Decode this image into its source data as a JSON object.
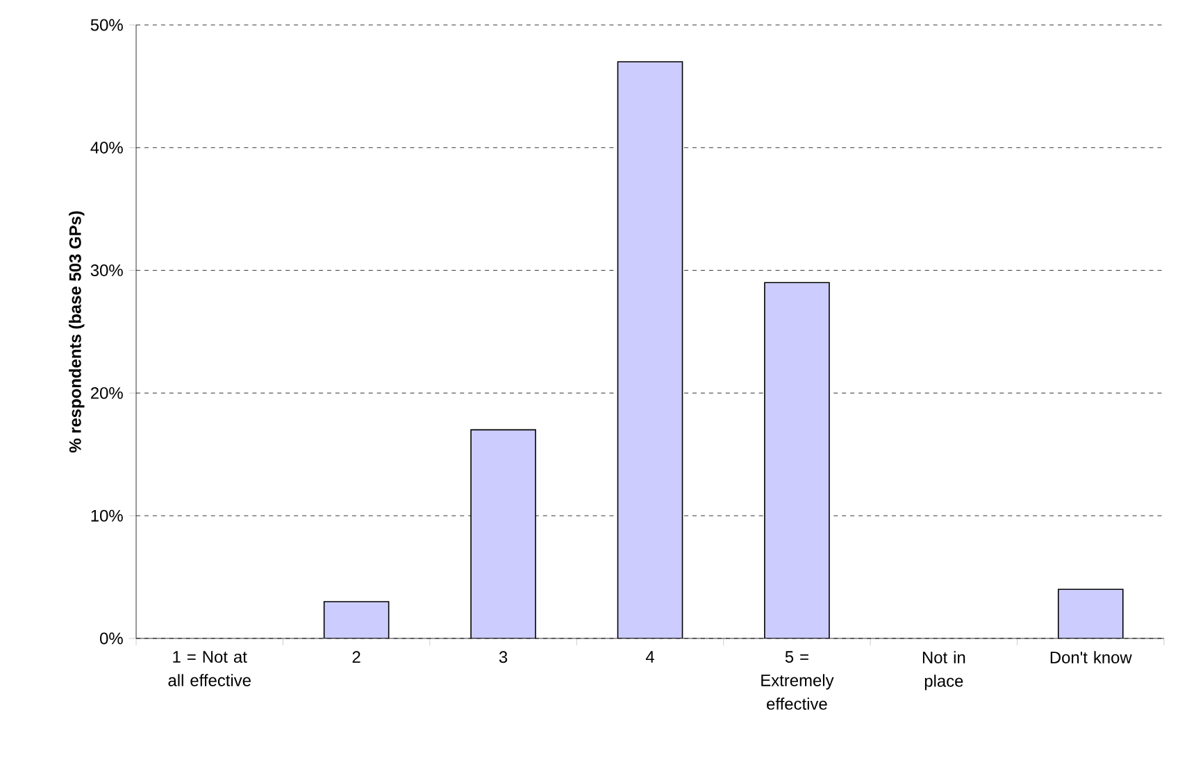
{
  "chart_data": {
    "type": "bar",
    "categories": [
      "1 = Not at all effective",
      "2",
      "3",
      "4",
      "5 = Extremely effective",
      "Not in place",
      "Don't know"
    ],
    "values": [
      0,
      3,
      17,
      47,
      29,
      0,
      4
    ],
    "color": "#ccccff",
    "ylabel": "% respondents  (base 503 GPs)",
    "ylim": [
      0,
      50
    ],
    "yticks": [
      {
        "value": 0,
        "label": "0%"
      },
      {
        "value": 10,
        "label": "10%"
      },
      {
        "value": 20,
        "label": "20%"
      },
      {
        "value": 30,
        "label": "30%"
      },
      {
        "value": 40,
        "label": "40%"
      },
      {
        "value": 50,
        "label": "50%"
      }
    ],
    "grid": "y"
  }
}
